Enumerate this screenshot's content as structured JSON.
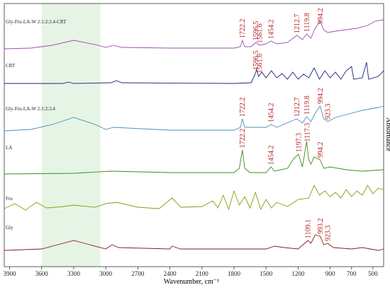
{
  "chart_data": {
    "type": "line",
    "xlabel": "Wavenumber, cm⁻¹",
    "ylabel": "Absorbance",
    "xlim": [
      3950,
      400
    ],
    "xticks": [
      3900,
      3600,
      3300,
      3000,
      2700,
      2400,
      2100,
      1800,
      1500,
      1200,
      900,
      700,
      500
    ],
    "ylim": [
      0,
      372
    ],
    "highlight": [
      3600,
      3050
    ],
    "highlight_color": "#e6f4e6",
    "peak_color": "#b52020",
    "series": [
      {
        "name": "Gly-Fru-LA-W 2:1:2:3.4-CRT",
        "color": "#9b4fb0",
        "x": [
          3950,
          3700,
          3500,
          3300,
          3100,
          3000,
          2930,
          2850,
          2400,
          2000,
          1800,
          1740,
          1722,
          1700,
          1640,
          1596,
          1560,
          1500,
          1454,
          1400,
          1300,
          1212,
          1160,
          1120,
          1080,
          1040,
          994,
          960,
          923,
          850,
          750,
          650,
          550,
          480,
          400
        ],
        "values": [
          308,
          309,
          313,
          320,
          314,
          310,
          313,
          310,
          309,
          309,
          309,
          311,
          320,
          311,
          311,
          317,
          313,
          315,
          319,
          315,
          317,
          327,
          321,
          329,
          323,
          337,
          347,
          335,
          331,
          333,
          335,
          337,
          341,
          347,
          349
        ],
        "peaks": [
          1722.2,
          1596.5,
          1561.6,
          1454.2,
          1212.7,
          1119.8,
          994.2
        ]
      },
      {
        "name": "CRT",
        "color": "#1a237e",
        "x": [
          3950,
          3400,
          3350,
          3300,
          2950,
          2900,
          2850,
          1800,
          1640,
          1600,
          1590,
          1570,
          1540,
          1500,
          1450,
          1400,
          1350,
          1300,
          1250,
          1200,
          1150,
          1100,
          1050,
          1000,
          950,
          900,
          850,
          800,
          750,
          700,
          680,
          600,
          560,
          540,
          450,
          400
        ],
        "values": [
          259,
          259,
          261,
          259,
          260,
          263,
          260,
          259,
          260,
          273,
          279,
          269,
          275,
          267,
          277,
          267,
          273,
          265,
          275,
          265,
          272,
          267,
          281,
          265,
          277,
          267,
          275,
          265,
          277,
          283,
          265,
          267,
          289,
          265,
          269,
          277
        ],
        "peaks": [
          1596.5,
          1561.6
        ]
      },
      {
        "name": "Gly-Fru-LA-W 2:1:2:3.4",
        "color": "#4a90b8",
        "x": [
          3950,
          3700,
          3500,
          3300,
          3100,
          3000,
          2930,
          2400,
          1800,
          1740,
          1722,
          1700,
          1500,
          1454,
          1400,
          1212,
          1160,
          1120,
          1080,
          1040,
          994,
          960,
          923,
          850,
          750,
          600,
          450,
          400
        ],
        "values": [
          192,
          194,
          201,
          211,
          201,
          194,
          197,
          193,
          193,
          197,
          209,
          197,
          197,
          201,
          197,
          209,
          203,
          212,
          205,
          217,
          227,
          209,
          205,
          211,
          215,
          221,
          225,
          227
        ],
        "peaks": [
          1722.2,
          1454.2,
          1212.7,
          1119.8,
          994.2,
          923.3
        ]
      },
      {
        "name": "LA",
        "color": "#3d8c1e",
        "x": [
          3950,
          3300,
          2950,
          2400,
          1800,
          1750,
          1722,
          1700,
          1650,
          1500,
          1454,
          1420,
          1300,
          1240,
          1197,
          1160,
          1120,
          1100,
          1080,
          1050,
          994,
          960,
          900,
          750,
          600,
          400
        ],
        "values": [
          131,
          132,
          135,
          133,
          133,
          139,
          165,
          139,
          133,
          133,
          141,
          135,
          139,
          153,
          159,
          141,
          177,
          151,
          145,
          155,
          151,
          139,
          141,
          137,
          135,
          137
        ],
        "peaks": [
          1722.2,
          1454.2,
          1197.3,
          1117.3,
          994.2
        ]
      },
      {
        "name": "Fru",
        "color": "#8a9a10",
        "x": [
          3950,
          3850,
          3750,
          3650,
          3550,
          3400,
          3300,
          3100,
          3000,
          2900,
          2700,
          2500,
          2380,
          2340,
          2300,
          2100,
          2000,
          1950,
          1900,
          1850,
          1800,
          1750,
          1700,
          1650,
          1600,
          1550,
          1500,
          1450,
          1400,
          1300,
          1200,
          1100,
          1050,
          1000,
          950,
          900,
          850,
          800,
          750,
          700,
          650,
          600,
          550,
          500,
          450,
          400
        ],
        "values": [
          82,
          89,
          80,
          91,
          83,
          85,
          87,
          84,
          89,
          91,
          84,
          82,
          97,
          91,
          84,
          85,
          93,
          83,
          101,
          81,
          107,
          87,
          99,
          83,
          105,
          81,
          95,
          83,
          91,
          85,
          95,
          97,
          115,
          101,
          107,
          99,
          105,
          97,
          109,
          99,
          107,
          101,
          115,
          103,
          111,
          109
        ],
        "peaks": []
      },
      {
        "name": "Gly",
        "color": "#8b1a1a",
        "x": [
          3950,
          3600,
          3450,
          3300,
          3150,
          3000,
          2940,
          2880,
          2400,
          2380,
          2300,
          1800,
          1500,
          1420,
          1330,
          1200,
          1109,
          1080,
          1040,
          993,
          960,
          923,
          870,
          700,
          600,
          450,
          400
        ],
        "values": [
          23,
          25,
          31,
          37,
          31,
          25,
          31,
          27,
          25,
          29,
          25,
          25,
          25,
          29,
          27,
          25,
          37,
          33,
          45,
          43,
          31,
          33,
          27,
          25,
          27,
          23,
          25
        ],
        "peaks": [
          1109.1,
          993.2,
          923.3
        ]
      }
    ]
  }
}
